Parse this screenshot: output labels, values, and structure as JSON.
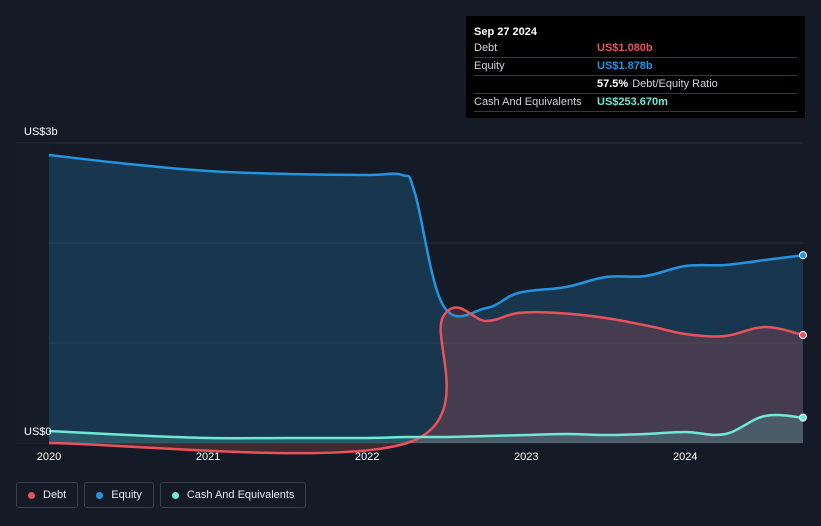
{
  "chart_data": {
    "type": "area",
    "y_axis_max_label": "US$3b",
    "y_axis_min_label": "US$0",
    "ylim": [
      0,
      3
    ],
    "x_ticks": [
      "2020",
      "2021",
      "2022",
      "2023",
      "2024"
    ],
    "x_tick_values": [
      2020,
      2021,
      2022,
      2023,
      2024
    ],
    "xlim": [
      2020,
      2024.74
    ],
    "series": [
      {
        "name": "Debt",
        "color": "#e8535b",
        "x": [
          2020,
          2022.25,
          2022.48,
          2022.75,
          2022.95,
          2023.2,
          2023.5,
          2023.8,
          2024.0,
          2024.25,
          2024.5,
          2024.74
        ],
        "values": [
          0,
          0,
          1.27,
          1.22,
          1.3,
          1.3,
          1.25,
          1.16,
          1.09,
          1.07,
          1.16,
          1.08
        ]
      },
      {
        "name": "Equity",
        "color": "#2394df",
        "x": [
          2020,
          2020.5,
          2021.0,
          2021.5,
          2022.0,
          2022.22,
          2022.3,
          2022.48,
          2022.75,
          2022.95,
          2023.25,
          2023.5,
          2023.75,
          2024.0,
          2024.25,
          2024.5,
          2024.74
        ],
        "values": [
          2.88,
          2.79,
          2.72,
          2.69,
          2.68,
          2.68,
          2.5,
          1.37,
          1.35,
          1.5,
          1.56,
          1.66,
          1.67,
          1.77,
          1.78,
          1.83,
          1.878
        ]
      },
      {
        "name": "Cash And Equivalents",
        "color": "#71e7d6",
        "x": [
          2020,
          2020.5,
          2021.0,
          2021.5,
          2022.0,
          2022.25,
          2022.5,
          2022.75,
          2023.0,
          2023.25,
          2023.5,
          2023.75,
          2024.0,
          2024.25,
          2024.5,
          2024.74
        ],
        "values": [
          0.12,
          0.08,
          0.05,
          0.05,
          0.05,
          0.06,
          0.06,
          0.07,
          0.08,
          0.09,
          0.08,
          0.09,
          0.11,
          0.09,
          0.27,
          0.2537
        ]
      }
    ],
    "grid": true,
    "legend": "bottom-left"
  },
  "tooltip": {
    "date": "Sep 27 2024",
    "debt_label": "Debt",
    "debt_value": "US$1.080b",
    "equity_label": "Equity",
    "equity_value": "US$1.878b",
    "ratio_value": "57.5%",
    "ratio_label": "Debt/Equity Ratio",
    "cash_label": "Cash And Equivalents",
    "cash_value": "US$253.670m"
  },
  "legend": {
    "debt": "Debt",
    "equity": "Equity",
    "cash": "Cash And Equivalents"
  }
}
